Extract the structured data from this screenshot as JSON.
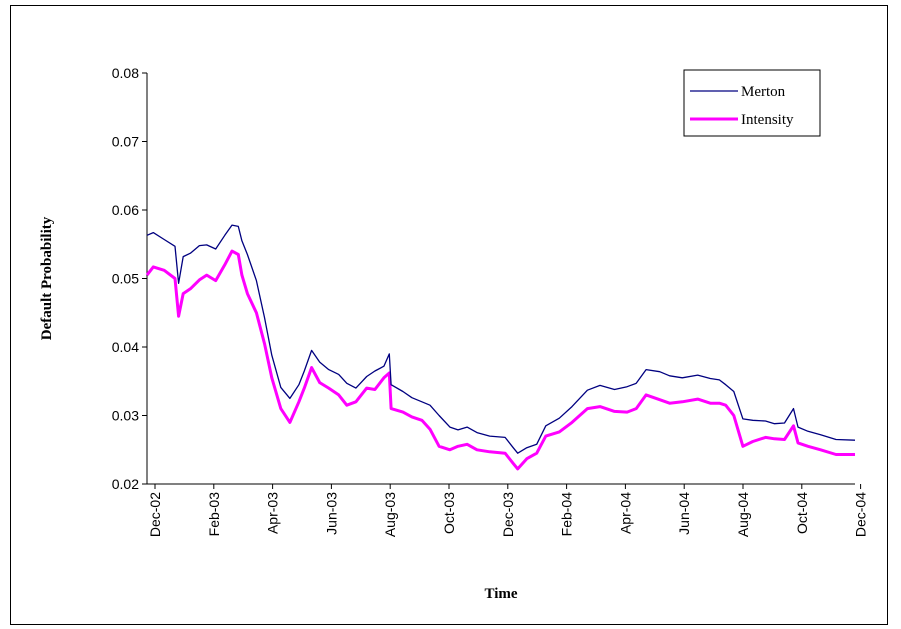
{
  "chart_data": {
    "type": "line",
    "xlabel": "Time",
    "ylabel": "Default Probability",
    "ylim": [
      0.02,
      0.08
    ],
    "yticks": [
      "0.02",
      "0.03",
      "0.04",
      "0.05",
      "0.06",
      "0.07",
      "0.08"
    ],
    "x_tick_labels": [
      "Dec-02",
      "Feb-03",
      "Apr-03",
      "Jun-03",
      "Aug-03",
      "Oct-03",
      "Dec-03",
      "Feb-04",
      "Apr-04",
      "Jun-04",
      "Aug-04",
      "Oct-04",
      "Dec-04"
    ],
    "x_range": [
      "2002-12-01",
      "2005-01-22"
    ],
    "legend_position": "top-right",
    "series": [
      {
        "name": "Merton",
        "color": "#000080",
        "x": [
          "2002-12-01",
          "2002-12-08",
          "2002-12-20",
          "2003-01-01",
          "2003-01-05",
          "2003-01-10",
          "2003-01-18",
          "2003-01-28",
          "2003-02-05",
          "2003-02-15",
          "2003-02-25",
          "2003-03-05",
          "2003-03-12",
          "2003-03-16",
          "2003-03-22",
          "2003-04-01",
          "2003-04-10",
          "2003-04-18",
          "2003-04-28",
          "2003-05-08",
          "2003-05-18",
          "2003-05-24",
          "2003-06-01",
          "2003-06-10",
          "2003-06-20",
          "2003-07-01",
          "2003-07-10",
          "2003-07-20",
          "2003-08-01",
          "2003-08-10",
          "2003-08-20",
          "2003-08-26",
          "2003-08-28",
          "2003-09-10",
          "2003-09-20",
          "2003-10-01",
          "2003-10-10",
          "2003-10-20",
          "2003-11-01",
          "2003-11-10",
          "2003-11-20",
          "2003-12-01",
          "2003-12-15",
          "2004-01-01",
          "2004-01-10",
          "2004-01-15",
          "2004-01-25",
          "2004-02-05",
          "2004-02-15",
          "2004-03-01",
          "2004-03-15",
          "2004-04-01",
          "2004-04-15",
          "2004-05-01",
          "2004-05-15",
          "2004-05-25",
          "2004-06-05",
          "2004-06-20",
          "2004-07-01",
          "2004-07-15",
          "2004-08-01",
          "2004-08-15",
          "2004-08-25",
          "2004-09-01",
          "2004-09-10",
          "2004-09-20",
          "2004-10-01",
          "2004-10-15",
          "2004-10-25",
          "2004-11-05",
          "2004-11-15",
          "2004-11-20",
          "2004-12-01",
          "2004-12-15",
          "2005-01-01",
          "2005-01-22"
        ],
        "values": [
          0.0563,
          0.0567,
          0.0557,
          0.0547,
          0.0493,
          0.0532,
          0.0537,
          0.0548,
          0.0549,
          0.0543,
          0.0563,
          0.0578,
          0.0576,
          0.0555,
          0.0535,
          0.0497,
          0.0443,
          0.0388,
          0.0341,
          0.0325,
          0.0345,
          0.0365,
          0.0395,
          0.0378,
          0.0367,
          0.036,
          0.0347,
          0.034,
          0.0357,
          0.0365,
          0.0372,
          0.039,
          0.0345,
          0.0335,
          0.0326,
          0.032,
          0.0315,
          0.03,
          0.0283,
          0.0279,
          0.0283,
          0.0275,
          0.027,
          0.0268,
          0.0253,
          0.0245,
          0.0253,
          0.0258,
          0.0285,
          0.0296,
          0.0313,
          0.0337,
          0.0344,
          0.0338,
          0.0342,
          0.0347,
          0.0367,
          0.0364,
          0.0358,
          0.0355,
          0.0359,
          0.0354,
          0.0352,
          0.0345,
          0.0335,
          0.0295,
          0.0293,
          0.0292,
          0.0288,
          0.0289,
          0.031,
          0.0283,
          0.0277,
          0.0272,
          0.0265,
          0.0264
        ]
      },
      {
        "name": "Intensity",
        "color": "#ff00ff",
        "x": [
          "2002-12-01",
          "2002-12-08",
          "2002-12-20",
          "2003-01-01",
          "2003-01-05",
          "2003-01-10",
          "2003-01-18",
          "2003-01-28",
          "2003-02-05",
          "2003-02-15",
          "2003-02-25",
          "2003-03-05",
          "2003-03-12",
          "2003-03-16",
          "2003-03-22",
          "2003-04-01",
          "2003-04-10",
          "2003-04-18",
          "2003-04-28",
          "2003-05-08",
          "2003-05-18",
          "2003-05-24",
          "2003-06-01",
          "2003-06-10",
          "2003-06-20",
          "2003-07-01",
          "2003-07-10",
          "2003-07-20",
          "2003-08-01",
          "2003-08-10",
          "2003-08-20",
          "2003-08-26",
          "2003-08-28",
          "2003-09-10",
          "2003-09-20",
          "2003-10-01",
          "2003-10-10",
          "2003-10-20",
          "2003-11-01",
          "2003-11-10",
          "2003-11-20",
          "2003-12-01",
          "2003-12-15",
          "2004-01-01",
          "2004-01-10",
          "2004-01-15",
          "2004-01-25",
          "2004-02-05",
          "2004-02-15",
          "2004-03-01",
          "2004-03-15",
          "2004-04-01",
          "2004-04-15",
          "2004-05-01",
          "2004-05-15",
          "2004-05-25",
          "2004-06-05",
          "2004-06-20",
          "2004-07-01",
          "2004-07-15",
          "2004-08-01",
          "2004-08-15",
          "2004-08-25",
          "2004-09-01",
          "2004-09-10",
          "2004-09-20",
          "2004-10-01",
          "2004-10-15",
          "2004-10-25",
          "2004-11-05",
          "2004-11-15",
          "2004-11-20",
          "2004-12-01",
          "2004-12-15",
          "2005-01-01",
          "2005-01-22"
        ],
        "values": [
          0.0505,
          0.0517,
          0.0512,
          0.05,
          0.0445,
          0.0478,
          0.0485,
          0.0498,
          0.0505,
          0.0497,
          0.052,
          0.054,
          0.0535,
          0.0505,
          0.0478,
          0.045,
          0.0405,
          0.0355,
          0.031,
          0.029,
          0.032,
          0.034,
          0.037,
          0.0348,
          0.034,
          0.033,
          0.0315,
          0.032,
          0.034,
          0.0338,
          0.0355,
          0.0362,
          0.031,
          0.0305,
          0.0298,
          0.0293,
          0.028,
          0.0255,
          0.025,
          0.0255,
          0.0258,
          0.025,
          0.0247,
          0.0245,
          0.023,
          0.0222,
          0.0237,
          0.0245,
          0.027,
          0.0276,
          0.029,
          0.031,
          0.0313,
          0.0306,
          0.0305,
          0.031,
          0.033,
          0.0323,
          0.0318,
          0.032,
          0.0324,
          0.0318,
          0.0318,
          0.0315,
          0.03,
          0.0255,
          0.0262,
          0.0268,
          0.0266,
          0.0265,
          0.0285,
          0.026,
          0.0255,
          0.025,
          0.0243,
          0.0243
        ]
      }
    ]
  }
}
